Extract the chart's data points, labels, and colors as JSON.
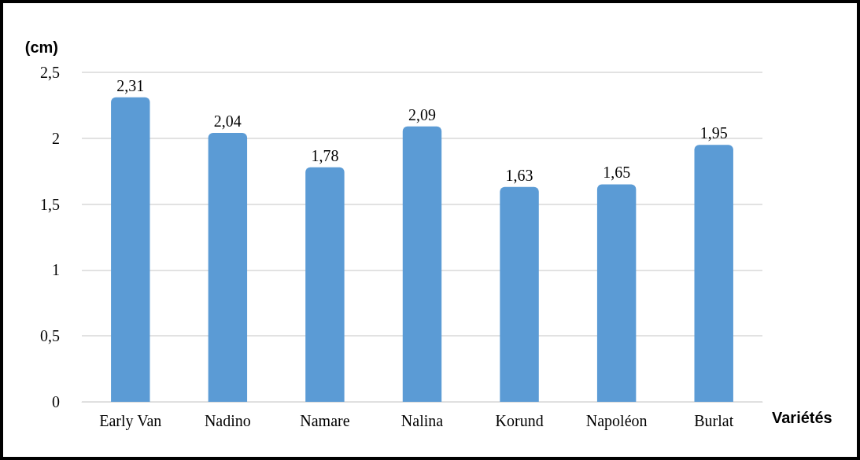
{
  "chart_data": {
    "type": "bar",
    "ylabel": "(cm)",
    "xlabel": "Variétés",
    "categories": [
      "Early Van",
      "Nadino",
      "Namare",
      "Nalina",
      "Korund",
      "Napoléon",
      "Burlat"
    ],
    "values": [
      2.31,
      2.04,
      1.78,
      2.09,
      1.63,
      1.65,
      1.95
    ],
    "value_labels": [
      "2,31",
      "2,04",
      "1,78",
      "2,09",
      "1,63",
      "1,65",
      "1,95"
    ],
    "color": "#5b9bd5",
    "ylim": [
      0,
      2.5
    ],
    "yticks": [
      0,
      {
        "value": 0.5,
        "label": "0,5"
      },
      1,
      {
        "value": 1.5,
        "label": "1,5"
      },
      2,
      {
        "value": 2.5,
        "label": "2,5"
      }
    ],
    "grid": "y"
  }
}
